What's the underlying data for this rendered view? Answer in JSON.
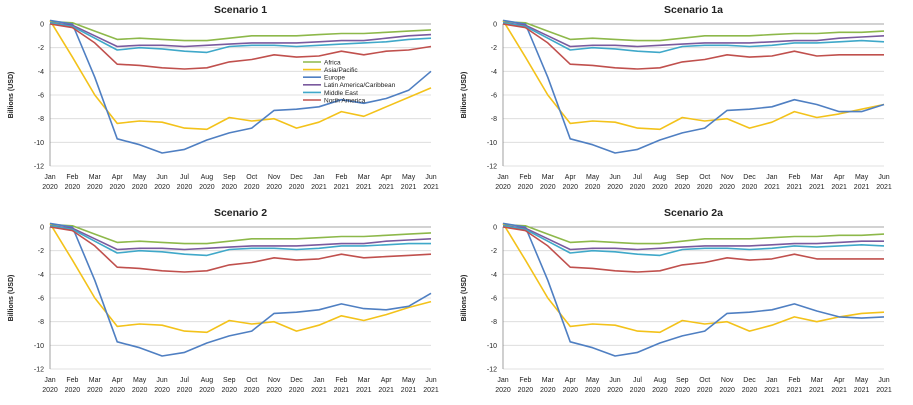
{
  "colors": {
    "Africa": "#8db84a",
    "Asia/Pacific": "#f3c21a",
    "Europe": "#4f7fc2",
    "Latin America/Caribbean": "#7a5a9e",
    "Middle East": "#3fa8c9",
    "North America": "#c0504d",
    "grid": "#d9d9d9",
    "axis": "#888888"
  },
  "chart_data": [
    {
      "type": "line",
      "title": "Scenario 1",
      "ylabel": "Billions (USD)",
      "xlabel": "",
      "ylim": [
        -12,
        0
      ],
      "yticks": [
        0,
        -2,
        -4,
        -6,
        -8,
        -10,
        -12
      ],
      "categories": [
        [
          "Jan",
          "2020"
        ],
        [
          "Feb",
          "2020"
        ],
        [
          "Mar",
          "2020"
        ],
        [
          "Apr",
          "2020"
        ],
        [
          "May",
          "2020"
        ],
        [
          "Jun",
          "2020"
        ],
        [
          "Jul",
          "2020"
        ],
        [
          "Aug",
          "2020"
        ],
        [
          "Sep",
          "2020"
        ],
        [
          "Oct",
          "2020"
        ],
        [
          "Nov",
          "2020"
        ],
        [
          "Dec",
          "2020"
        ],
        [
          "Jan",
          "2021"
        ],
        [
          "Feb",
          "2021"
        ],
        [
          "Mar",
          "2021"
        ],
        [
          "Apr",
          "2021"
        ],
        [
          "May",
          "2021"
        ],
        [
          "Jun",
          "2021"
        ]
      ],
      "legend": [
        "Africa",
        "Asia/Pacific",
        "Europe",
        "Latin America/Caribbean",
        "Middle East",
        "North America"
      ],
      "series": [
        {
          "name": "Africa",
          "values": [
            0.2,
            0.1,
            -0.6,
            -1.3,
            -1.2,
            -1.3,
            -1.4,
            -1.4,
            -1.2,
            -1.0,
            -1.0,
            -1.0,
            -0.9,
            -0.8,
            -0.8,
            -0.7,
            -0.6,
            -0.5
          ]
        },
        {
          "name": "Asia/Pacific",
          "values": [
            0.3,
            -2.8,
            -6.0,
            -8.4,
            -8.2,
            -8.3,
            -8.8,
            -8.9,
            -7.9,
            -8.2,
            -8.0,
            -8.8,
            -8.3,
            -7.4,
            -7.8,
            -7.0,
            -6.2,
            -5.4
          ]
        },
        {
          "name": "Europe",
          "values": [
            0.3,
            0.0,
            -4.5,
            -9.7,
            -10.2,
            -10.9,
            -10.6,
            -9.8,
            -9.2,
            -8.8,
            -7.3,
            -7.2,
            -7.0,
            -6.4,
            -6.7,
            -6.3,
            -5.6,
            -4.0
          ]
        },
        {
          "name": "Latin America/Caribbean",
          "values": [
            0.1,
            -0.1,
            -1.0,
            -1.9,
            -1.8,
            -1.8,
            -1.9,
            -1.8,
            -1.7,
            -1.6,
            -1.6,
            -1.6,
            -1.5,
            -1.4,
            -1.4,
            -1.2,
            -1.0,
            -0.9
          ]
        },
        {
          "name": "Middle East",
          "values": [
            0.1,
            -0.2,
            -1.2,
            -2.2,
            -2.0,
            -2.1,
            -2.3,
            -2.4,
            -1.9,
            -1.8,
            -1.8,
            -1.9,
            -1.8,
            -1.7,
            -1.6,
            -1.5,
            -1.3,
            -1.2
          ]
        },
        {
          "name": "North America",
          "values": [
            0.0,
            -0.3,
            -1.6,
            -3.4,
            -3.5,
            -3.7,
            -3.8,
            -3.7,
            -3.2,
            -3.0,
            -2.6,
            -2.8,
            -2.7,
            -2.3,
            -2.6,
            -2.3,
            -2.2,
            -1.9
          ]
        }
      ]
    },
    {
      "type": "line",
      "title": "Scenario 1a",
      "ylabel": "Billions (USD)",
      "xlabel": "",
      "ylim": [
        -12,
        0
      ],
      "yticks": [
        0,
        -2,
        -4,
        -6,
        -8,
        -10,
        -12
      ],
      "categories": [
        [
          "Jan",
          "2020"
        ],
        [
          "Feb",
          "2020"
        ],
        [
          "Mar",
          "2020"
        ],
        [
          "Apr",
          "2020"
        ],
        [
          "May",
          "2020"
        ],
        [
          "Jun",
          "2020"
        ],
        [
          "Jul",
          "2020"
        ],
        [
          "Aug",
          "2020"
        ],
        [
          "Sep",
          "2020"
        ],
        [
          "Oct",
          "2020"
        ],
        [
          "Nov",
          "2020"
        ],
        [
          "Dec",
          "2020"
        ],
        [
          "Jan",
          "2021"
        ],
        [
          "Feb",
          "2021"
        ],
        [
          "Mar",
          "2021"
        ],
        [
          "Apr",
          "2021"
        ],
        [
          "May",
          "2021"
        ],
        [
          "Jun",
          "2021"
        ]
      ],
      "legend": [],
      "series": [
        {
          "name": "Africa",
          "values": [
            0.2,
            0.1,
            -0.6,
            -1.3,
            -1.2,
            -1.3,
            -1.4,
            -1.4,
            -1.2,
            -1.0,
            -1.0,
            -1.0,
            -0.9,
            -0.8,
            -0.8,
            -0.7,
            -0.7,
            -0.6
          ]
        },
        {
          "name": "Asia/Pacific",
          "values": [
            0.3,
            -2.8,
            -6.0,
            -8.4,
            -8.2,
            -8.3,
            -8.8,
            -8.9,
            -7.9,
            -8.2,
            -8.0,
            -8.8,
            -8.3,
            -7.4,
            -7.9,
            -7.6,
            -7.2,
            -6.8
          ]
        },
        {
          "name": "Europe",
          "values": [
            0.3,
            0.0,
            -4.5,
            -9.7,
            -10.2,
            -10.9,
            -10.6,
            -9.8,
            -9.2,
            -8.8,
            -7.3,
            -7.2,
            -7.0,
            -6.4,
            -6.8,
            -7.4,
            -7.4,
            -6.8
          ]
        },
        {
          "name": "Latin America/Caribbean",
          "values": [
            0.1,
            -0.1,
            -1.0,
            -1.9,
            -1.8,
            -1.8,
            -1.9,
            -1.8,
            -1.7,
            -1.6,
            -1.6,
            -1.6,
            -1.5,
            -1.4,
            -1.4,
            -1.2,
            -1.1,
            -1.0
          ]
        },
        {
          "name": "Middle East",
          "values": [
            0.1,
            -0.2,
            -1.2,
            -2.2,
            -2.0,
            -2.1,
            -2.3,
            -2.4,
            -1.9,
            -1.8,
            -1.8,
            -1.9,
            -1.8,
            -1.6,
            -1.6,
            -1.5,
            -1.4,
            -1.5
          ]
        },
        {
          "name": "North America",
          "values": [
            0.0,
            -0.3,
            -1.6,
            -3.4,
            -3.5,
            -3.7,
            -3.8,
            -3.7,
            -3.2,
            -3.0,
            -2.6,
            -2.8,
            -2.7,
            -2.3,
            -2.7,
            -2.6,
            -2.6,
            -2.6
          ]
        }
      ]
    },
    {
      "type": "line",
      "title": "Scenario 2",
      "ylabel": "Billions (USD)",
      "xlabel": "",
      "ylim": [
        -12,
        0
      ],
      "yticks": [
        0,
        -2,
        -4,
        -6,
        -8,
        -10,
        -12
      ],
      "categories": [
        [
          "Jan",
          "2020"
        ],
        [
          "Feb",
          "2020"
        ],
        [
          "Mar",
          "2020"
        ],
        [
          "Apr",
          "2020"
        ],
        [
          "May",
          "2020"
        ],
        [
          "Jun",
          "2020"
        ],
        [
          "Jul",
          "2020"
        ],
        [
          "Aug",
          "2020"
        ],
        [
          "Sep",
          "2020"
        ],
        [
          "Oct",
          "2020"
        ],
        [
          "Nov",
          "2020"
        ],
        [
          "Dec",
          "2020"
        ],
        [
          "Jan",
          "2021"
        ],
        [
          "Feb",
          "2021"
        ],
        [
          "Mar",
          "2021"
        ],
        [
          "Apr",
          "2021"
        ],
        [
          "May",
          "2021"
        ],
        [
          "Jun",
          "2021"
        ]
      ],
      "legend": [],
      "series": [
        {
          "name": "Africa",
          "values": [
            0.2,
            0.1,
            -0.6,
            -1.3,
            -1.2,
            -1.3,
            -1.4,
            -1.4,
            -1.2,
            -1.0,
            -1.0,
            -1.0,
            -0.9,
            -0.8,
            -0.8,
            -0.7,
            -0.6,
            -0.5
          ]
        },
        {
          "name": "Asia/Pacific",
          "values": [
            0.3,
            -2.8,
            -6.0,
            -8.4,
            -8.2,
            -8.3,
            -8.8,
            -8.9,
            -7.9,
            -8.2,
            -8.0,
            -8.8,
            -8.3,
            -7.5,
            -7.9,
            -7.4,
            -6.8,
            -6.3
          ]
        },
        {
          "name": "Europe",
          "values": [
            0.3,
            0.0,
            -4.5,
            -9.7,
            -10.2,
            -10.9,
            -10.6,
            -9.8,
            -9.2,
            -8.8,
            -7.3,
            -7.2,
            -7.0,
            -6.5,
            -6.9,
            -7.0,
            -6.7,
            -5.6
          ]
        },
        {
          "name": "Latin America/Caribbean",
          "values": [
            0.1,
            -0.1,
            -1.0,
            -1.9,
            -1.8,
            -1.8,
            -1.9,
            -1.8,
            -1.7,
            -1.6,
            -1.6,
            -1.6,
            -1.5,
            -1.4,
            -1.4,
            -1.2,
            -1.1,
            -1.0
          ]
        },
        {
          "name": "Middle East",
          "values": [
            0.1,
            -0.2,
            -1.2,
            -2.2,
            -2.0,
            -2.1,
            -2.3,
            -2.4,
            -1.9,
            -1.8,
            -1.8,
            -1.9,
            -1.8,
            -1.6,
            -1.6,
            -1.5,
            -1.4,
            -1.4
          ]
        },
        {
          "name": "North America",
          "values": [
            0.0,
            -0.3,
            -1.6,
            -3.4,
            -3.5,
            -3.7,
            -3.8,
            -3.7,
            -3.2,
            -3.0,
            -2.6,
            -2.8,
            -2.7,
            -2.3,
            -2.6,
            -2.5,
            -2.4,
            -2.3
          ]
        }
      ]
    },
    {
      "type": "line",
      "title": "Scenario 2a",
      "ylabel": "Billions (USD)",
      "xlabel": "",
      "ylim": [
        -12,
        0
      ],
      "yticks": [
        0,
        -2,
        -4,
        -6,
        -8,
        -10,
        -12
      ],
      "categories": [
        [
          "Jan",
          "2020"
        ],
        [
          "Feb",
          "2020"
        ],
        [
          "Mar",
          "2020"
        ],
        [
          "Apr",
          "2020"
        ],
        [
          "May",
          "2020"
        ],
        [
          "Jun",
          "2020"
        ],
        [
          "Jul",
          "2020"
        ],
        [
          "Aug",
          "2020"
        ],
        [
          "Sep",
          "2020"
        ],
        [
          "Oct",
          "2020"
        ],
        [
          "Nov",
          "2020"
        ],
        [
          "Dec",
          "2020"
        ],
        [
          "Jan",
          "2021"
        ],
        [
          "Feb",
          "2021"
        ],
        [
          "Mar",
          "2021"
        ],
        [
          "Apr",
          "2021"
        ],
        [
          "May",
          "2021"
        ],
        [
          "Jun",
          "2021"
        ]
      ],
      "legend": [],
      "series": [
        {
          "name": "Africa",
          "values": [
            0.2,
            0.1,
            -0.6,
            -1.3,
            -1.2,
            -1.3,
            -1.4,
            -1.4,
            -1.2,
            -1.0,
            -1.0,
            -1.0,
            -0.9,
            -0.8,
            -0.8,
            -0.7,
            -0.7,
            -0.6
          ]
        },
        {
          "name": "Asia/Pacific",
          "values": [
            0.3,
            -2.8,
            -6.0,
            -8.4,
            -8.2,
            -8.3,
            -8.8,
            -8.9,
            -7.9,
            -8.2,
            -8.0,
            -8.8,
            -8.3,
            -7.6,
            -8.0,
            -7.6,
            -7.3,
            -7.2
          ]
        },
        {
          "name": "Europe",
          "values": [
            0.3,
            0.0,
            -4.5,
            -9.7,
            -10.2,
            -10.9,
            -10.6,
            -9.8,
            -9.2,
            -8.8,
            -7.3,
            -7.2,
            -7.0,
            -6.5,
            -7.1,
            -7.6,
            -7.7,
            -7.6
          ]
        },
        {
          "name": "Latin America/Caribbean",
          "values": [
            0.1,
            -0.1,
            -1.0,
            -1.9,
            -1.8,
            -1.8,
            -1.9,
            -1.8,
            -1.7,
            -1.6,
            -1.6,
            -1.6,
            -1.5,
            -1.4,
            -1.4,
            -1.3,
            -1.2,
            -1.2
          ]
        },
        {
          "name": "Middle East",
          "values": [
            0.1,
            -0.2,
            -1.2,
            -2.2,
            -2.0,
            -2.1,
            -2.3,
            -2.4,
            -1.9,
            -1.8,
            -1.8,
            -1.9,
            -1.8,
            -1.6,
            -1.7,
            -1.6,
            -1.5,
            -1.6
          ]
        },
        {
          "name": "North America",
          "values": [
            0.0,
            -0.3,
            -1.6,
            -3.4,
            -3.5,
            -3.7,
            -3.8,
            -3.7,
            -3.2,
            -3.0,
            -2.6,
            -2.8,
            -2.7,
            -2.3,
            -2.7,
            -2.7,
            -2.7,
            -2.7
          ]
        }
      ]
    }
  ]
}
